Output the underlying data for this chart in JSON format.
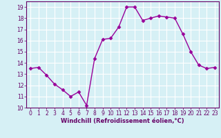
{
  "x": [
    0,
    1,
    2,
    3,
    4,
    5,
    6,
    7,
    8,
    9,
    10,
    11,
    12,
    13,
    14,
    15,
    16,
    17,
    18,
    19,
    20,
    21,
    22,
    23
  ],
  "y": [
    13.5,
    13.6,
    12.9,
    12.1,
    11.6,
    11.0,
    11.4,
    10.2,
    14.4,
    16.1,
    16.2,
    17.2,
    19.0,
    19.0,
    17.8,
    18.0,
    18.2,
    18.1,
    18.0,
    16.6,
    15.0,
    13.8,
    13.5,
    13.6
  ],
  "line_color": "#990099",
  "marker": "D",
  "markersize": 2.5,
  "linewidth": 1.0,
  "xlim": [
    -0.5,
    23.5
  ],
  "ylim": [
    10,
    19.5
  ],
  "yticks": [
    10,
    11,
    12,
    13,
    14,
    15,
    16,
    17,
    18,
    19
  ],
  "xticks": [
    0,
    1,
    2,
    3,
    4,
    5,
    6,
    7,
    8,
    9,
    10,
    11,
    12,
    13,
    14,
    15,
    16,
    17,
    18,
    19,
    20,
    21,
    22,
    23
  ],
  "xlabel": "Windchill (Refroidissement éolien,°C)",
  "background_color": "#d6f0f5",
  "grid_color": "#ffffff",
  "tick_color": "#660066",
  "label_color": "#660066",
  "tick_labelsize": 5.5,
  "xlabel_fontsize": 6.0
}
